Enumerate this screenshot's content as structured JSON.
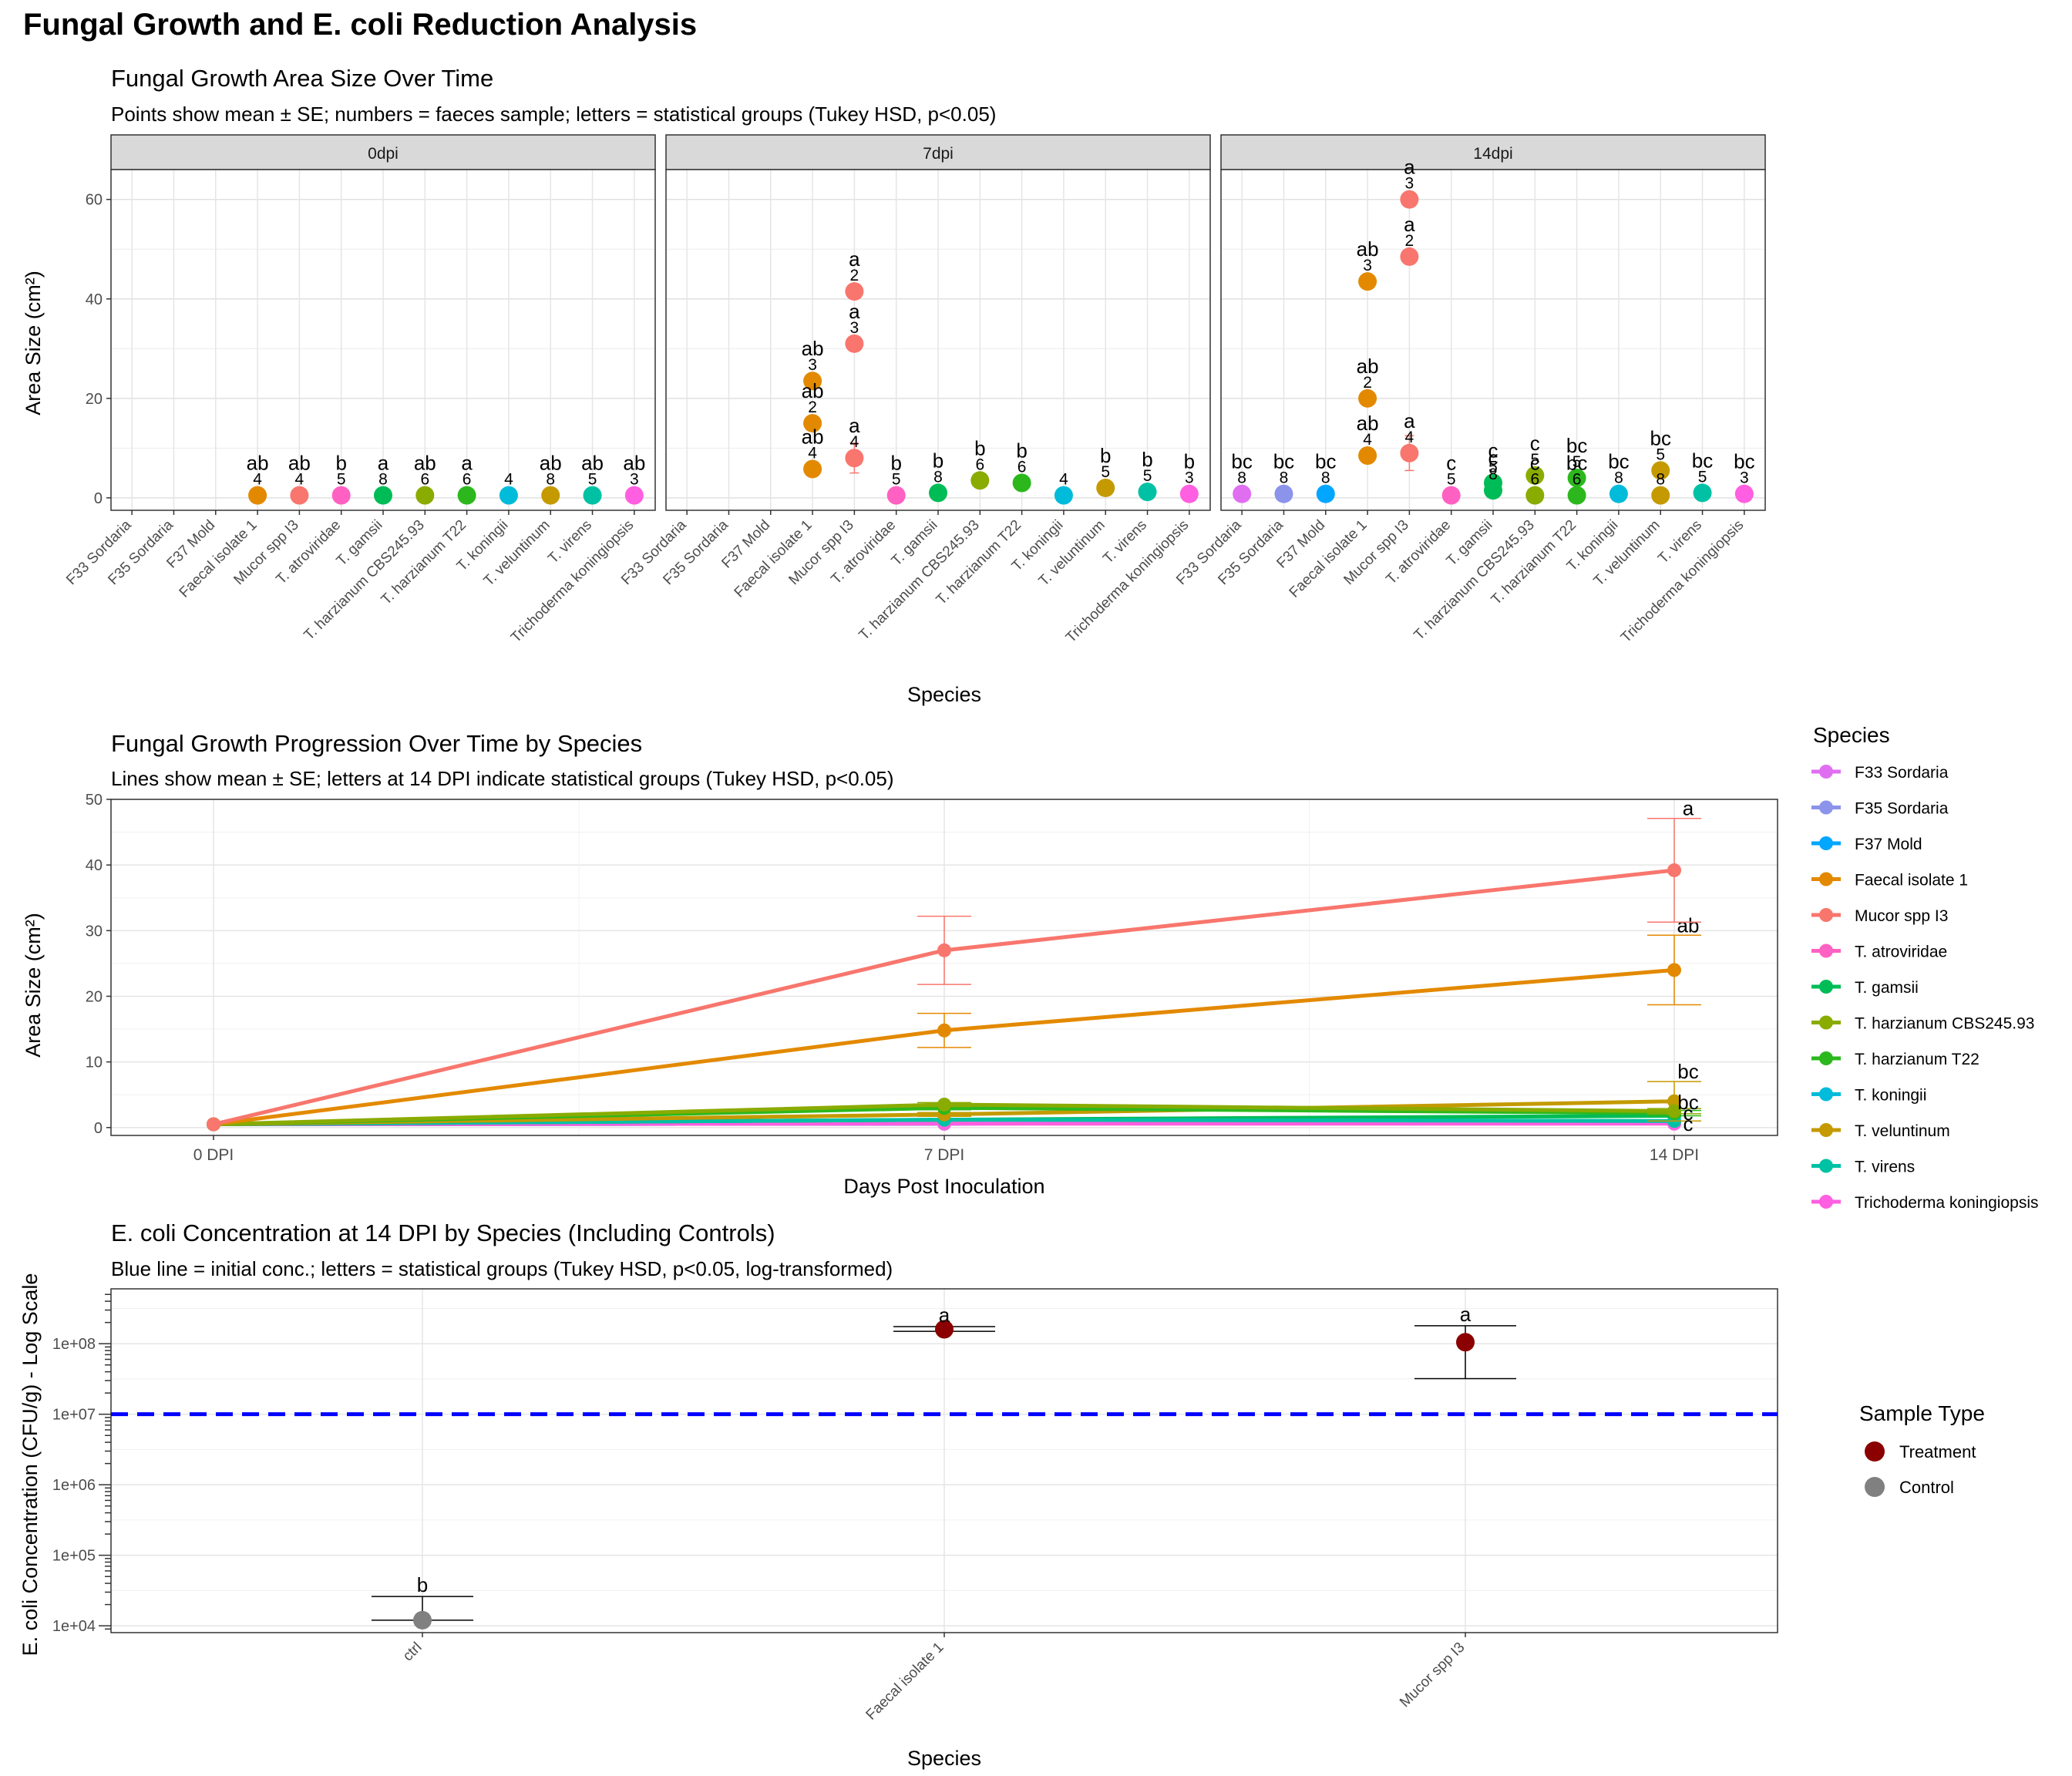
{
  "figure": {
    "title": "Fungal Growth and E. coli Reduction Analysis"
  },
  "chart_data": [
    {
      "type": "scatter",
      "title": "Fungal Growth Area Size Over Time",
      "subtitle": "Points show mean ± SE; numbers = faeces sample; letters = statistical groups (Tukey HSD, p<0.05)",
      "xlabel": "Species",
      "ylabel": "Area Size (cm²)",
      "ylim": [
        -2.5,
        66
      ],
      "yticks": [
        0,
        20,
        40,
        60
      ],
      "grid": true,
      "categories": [
        "F33 Sordaria",
        "F35 Sordaria",
        "F37 Mold",
        "Faecal isolate 1",
        "Mucor spp I3",
        "T. atroviridae",
        "T. gamsii",
        "T. harzianum CBS245.93",
        "T. harzianum T22",
        "T. koningii",
        "T. veluntinum",
        "T. virens",
        "Trichoderma koningiopsis"
      ],
      "colors": {
        "F33 Sordaria": "#DF6FF0",
        "F35 Sordaria": "#8C93EA",
        "F37 Mold": "#00A6FF",
        "Faecal isolate 1": "#E38900",
        "Mucor spp I3": "#F8766D",
        "T. atroviridae": "#FF61C3",
        "T. gamsii": "#00BC56",
        "T. harzianum CBS245.93": "#8AAB00",
        "T. harzianum T22": "#2CB81D",
        "T. koningii": "#00BBDA",
        "T. veluntinum": "#C49A00",
        "T. virens": "#00C1A4",
        "Trichoderma koningiopsis": "#FF5FE0"
      },
      "panels": [
        {
          "label": "0dpi",
          "points": [
            {
              "species": "Faecal isolate 1",
              "y": 0.5,
              "se": 0,
              "sample": "4",
              "letter": "ab"
            },
            {
              "species": "Mucor spp I3",
              "y": 0.5,
              "se": 0,
              "sample": "4",
              "letter": "ab"
            },
            {
              "species": "T. atroviridae",
              "y": 0.5,
              "se": 0,
              "sample": "5",
              "letter": "b"
            },
            {
              "species": "T. gamsii",
              "y": 0.5,
              "se": 0,
              "sample": "8",
              "letter": "a"
            },
            {
              "species": "T. harzianum CBS245.93",
              "y": 0.5,
              "se": 0,
              "sample": "6",
              "letter": "ab"
            },
            {
              "species": "T. harzianum T22",
              "y": 0.5,
              "se": 0,
              "sample": "6",
              "letter": "a"
            },
            {
              "species": "T. koningii",
              "y": 0.5,
              "se": 0,
              "sample": "4",
              "letter": ""
            },
            {
              "species": "T. veluntinum",
              "y": 0.5,
              "se": 0,
              "sample": "8",
              "letter": "ab"
            },
            {
              "species": "T. virens",
              "y": 0.5,
              "se": 0,
              "sample": "5",
              "letter": "ab"
            },
            {
              "species": "Trichoderma koningiopsis",
              "y": 0.5,
              "se": 0,
              "sample": "3",
              "letter": "ab"
            }
          ]
        },
        {
          "label": "7dpi",
          "points": [
            {
              "species": "Faecal isolate 1",
              "y": 23.5,
              "se": 0,
              "sample": "3",
              "letter": "ab"
            },
            {
              "species": "Faecal isolate 1",
              "y": 15,
              "se": 0,
              "sample": "2",
              "letter": "ab"
            },
            {
              "species": "Faecal isolate 1",
              "y": 5.8,
              "se": 0,
              "sample": "4",
              "letter": "ab"
            },
            {
              "species": "Mucor spp I3",
              "y": 41.5,
              "se": 0,
              "sample": "2",
              "letter": "a"
            },
            {
              "species": "Mucor spp I3",
              "y": 31,
              "se": 0,
              "sample": "3",
              "letter": "a"
            },
            {
              "species": "Mucor spp I3",
              "y": 8,
              "se": 3,
              "sample": "4",
              "letter": "a"
            },
            {
              "species": "T. atroviridae",
              "y": 0.5,
              "se": 0,
              "sample": "5",
              "letter": "b"
            },
            {
              "species": "T. gamsii",
              "y": 1,
              "se": 0,
              "sample": "8",
              "letter": "b"
            },
            {
              "species": "T. harzianum CBS245.93",
              "y": 3.5,
              "se": 0,
              "sample": "6",
              "letter": "b"
            },
            {
              "species": "T. harzianum T22",
              "y": 3,
              "se": 0,
              "sample": "6",
              "letter": "b"
            },
            {
              "species": "T. koningii",
              "y": 0.5,
              "se": 0,
              "sample": "4",
              "letter": ""
            },
            {
              "species": "T. veluntinum",
              "y": 2,
              "se": 0,
              "sample": "5",
              "letter": "b"
            },
            {
              "species": "T. virens",
              "y": 1.2,
              "se": 0,
              "sample": "5",
              "letter": "b"
            },
            {
              "species": "Trichoderma koningiopsis",
              "y": 0.8,
              "se": 0,
              "sample": "3",
              "letter": "b"
            }
          ]
        },
        {
          "label": "14dpi",
          "points": [
            {
              "species": "F33 Sordaria",
              "y": 0.8,
              "se": 0,
              "sample": "8",
              "letter": "bc"
            },
            {
              "species": "F35 Sordaria",
              "y": 0.8,
              "se": 0,
              "sample": "8",
              "letter": "bc"
            },
            {
              "species": "F37 Mold",
              "y": 0.8,
              "se": 0,
              "sample": "8",
              "letter": "bc"
            },
            {
              "species": "Faecal isolate 1",
              "y": 43.5,
              "se": 0,
              "sample": "3",
              "letter": "ab"
            },
            {
              "species": "Faecal isolate 1",
              "y": 20,
              "se": 0,
              "sample": "2",
              "letter": "ab"
            },
            {
              "species": "Faecal isolate 1",
              "y": 8.5,
              "se": 0,
              "sample": "4",
              "letter": "ab"
            },
            {
              "species": "Mucor spp I3",
              "y": 60,
              "se": 0,
              "sample": "3",
              "letter": "a"
            },
            {
              "species": "Mucor spp I3",
              "y": 48.5,
              "se": 0,
              "sample": "2",
              "letter": "a"
            },
            {
              "species": "Mucor spp I3",
              "y": 9,
              "se": 3.5,
              "sample": "4",
              "letter": "a"
            },
            {
              "species": "T. atroviridae",
              "y": 0.5,
              "se": 0,
              "sample": "5",
              "letter": "c"
            },
            {
              "species": "T. gamsii",
              "y": 3,
              "se": 0,
              "sample": "5",
              "letter": "c"
            },
            {
              "species": "T. gamsii",
              "y": 1.5,
              "se": 0,
              "sample": "8",
              "letter": "c"
            },
            {
              "species": "T. harzianum CBS245.93",
              "y": 4.5,
              "se": 0,
              "sample": "5",
              "letter": "c"
            },
            {
              "species": "T. harzianum CBS245.93",
              "y": 0.5,
              "se": 0,
              "sample": "6",
              "letter": "c"
            },
            {
              "species": "T. harzianum T22",
              "y": 4,
              "se": 0,
              "sample": "5",
              "letter": "bc"
            },
            {
              "species": "T. harzianum T22",
              "y": 0.5,
              "se": 0,
              "sample": "6",
              "letter": "bc"
            },
            {
              "species": "T. koningii",
              "y": 0.8,
              "se": 0,
              "sample": "8",
              "letter": "bc"
            },
            {
              "species": "T. veluntinum",
              "y": 5.5,
              "se": 0,
              "sample": "5",
              "letter": "bc"
            },
            {
              "species": "T. veluntinum",
              "y": 0.5,
              "se": 0,
              "sample": "8",
              "letter": ""
            },
            {
              "species": "T. virens",
              "y": 1,
              "se": 0,
              "sample": "5",
              "letter": "bc"
            },
            {
              "species": "Trichoderma koningiopsis",
              "y": 0.8,
              "se": 0,
              "sample": "3",
              "letter": "bc"
            }
          ]
        }
      ]
    },
    {
      "type": "line",
      "title": "Fungal Growth Progression Over Time by Species",
      "subtitle": "Lines show mean ± SE; letters at 14 DPI indicate statistical groups (Tukey HSD, p<0.05)",
      "xlabel": "Days Post Inoculation",
      "ylabel": "Area Size (cm²)",
      "categories": [
        "0 DPI",
        "7 DPI",
        "14 DPI"
      ],
      "ylim": [
        -1.2,
        50
      ],
      "yticks": [
        0,
        10,
        20,
        30,
        40,
        50
      ],
      "grid": true,
      "legend": {
        "title": "Species",
        "placement": "right"
      },
      "series": [
        {
          "name": "F33 Sordaria",
          "color": "#DF6FF0",
          "values": [
            0.5,
            0.6,
            0.8
          ],
          "se": [
            0,
            0,
            0
          ],
          "letter": ""
        },
        {
          "name": "F35 Sordaria",
          "color": "#8C93EA",
          "values": [
            0.5,
            0.6,
            0.8
          ],
          "se": [
            0,
            0,
            0
          ],
          "letter": ""
        },
        {
          "name": "F37 Mold",
          "color": "#00A6FF",
          "values": [
            0.5,
            0.6,
            0.9
          ],
          "se": [
            0,
            0,
            0
          ],
          "letter": ""
        },
        {
          "name": "Faecal isolate 1",
          "color": "#E38900",
          "values": [
            0.5,
            14.8,
            24
          ],
          "se": [
            0,
            2.6,
            5.3
          ],
          "letter": "ab"
        },
        {
          "name": "Mucor spp I3",
          "color": "#F8766D",
          "values": [
            0.5,
            27,
            39.2
          ],
          "se": [
            0,
            5.2,
            7.9
          ],
          "letter": "a"
        },
        {
          "name": "T. atroviridae",
          "color": "#FF61C3",
          "values": [
            0.5,
            0.6,
            0.6
          ],
          "se": [
            0,
            0,
            0
          ],
          "letter": ""
        },
        {
          "name": "T. gamsii",
          "color": "#00BC56",
          "values": [
            0.5,
            1.2,
            1.8
          ],
          "se": [
            0,
            0,
            0
          ],
          "letter": ""
        },
        {
          "name": "T. harzianum CBS245.93",
          "color": "#8AAB00",
          "values": [
            0.5,
            3.5,
            2.5
          ],
          "se": [
            0,
            0.3,
            0.4
          ],
          "letter": ""
        },
        {
          "name": "T. harzianum T22",
          "color": "#2CB81D",
          "values": [
            0.5,
            3,
            2.2
          ],
          "se": [
            0,
            0.3,
            0.4
          ],
          "letter": ""
        },
        {
          "name": "T. koningii",
          "color": "#00BBDA",
          "values": [
            0.5,
            0.6,
            0.9
          ],
          "se": [
            0,
            0,
            0
          ],
          "letter": ""
        },
        {
          "name": "T. veluntinum",
          "color": "#C49A00",
          "values": [
            0.5,
            2,
            4
          ],
          "se": [
            0,
            0.3,
            3
          ],
          "letter": "bc"
        },
        {
          "name": "T. virens",
          "color": "#00C1A4",
          "values": [
            0.5,
            1.2,
            1
          ],
          "se": [
            0,
            0,
            0
          ],
          "letter": ""
        },
        {
          "name": "Trichoderma koningiopsis",
          "color": "#FF5FE0",
          "values": [
            0.5,
            0.6,
            0.6
          ],
          "se": [
            0,
            0,
            0
          ],
          "letter": ""
        }
      ],
      "extra_letters_14dpi": [
        "bc",
        "c",
        "c"
      ]
    },
    {
      "type": "scatter",
      "title": "E. coli Concentration at 14 DPI by Species (Including Controls)",
      "subtitle": "Blue line = initial conc.; letters = statistical groups (Tukey HSD, p<0.05, log-transformed)",
      "xlabel": "Species",
      "ylabel": "E. coli Concentration (CFU/g) - Log Scale",
      "yscale": "log",
      "ylim": [
        8000,
        600000000
      ],
      "yticks": [
        10000,
        100000,
        1000000,
        10000000,
        100000000
      ],
      "ytick_labels": [
        "1e+04",
        "1e+05",
        "1e+06",
        "1e+07",
        "1e+08"
      ],
      "grid": true,
      "reference_line": {
        "value": 10000000,
        "color": "#0000FF"
      },
      "categories": [
        "ctrl",
        "Faecal isolate 1",
        "Mucor spp I3"
      ],
      "points": [
        {
          "category": "ctrl",
          "y": 12000,
          "se_low": 12000,
          "se_high": 26000,
          "type": "Control",
          "letter": "b"
        },
        {
          "category": "Faecal isolate 1",
          "y": 160000000,
          "se_low": 150000000,
          "se_high": 175000000,
          "type": "Treatment",
          "letter": "a"
        },
        {
          "category": "Mucor spp I3",
          "y": 105000000,
          "se_low": 32000000,
          "se_high": 180000000,
          "type": "Treatment",
          "letter": "a"
        }
      ],
      "legend": {
        "title": "Sample Type",
        "placement": "right",
        "items": [
          {
            "label": "Treatment",
            "color": "#8B0000"
          },
          {
            "label": "Control",
            "color": "#808080"
          }
        ]
      }
    }
  ]
}
